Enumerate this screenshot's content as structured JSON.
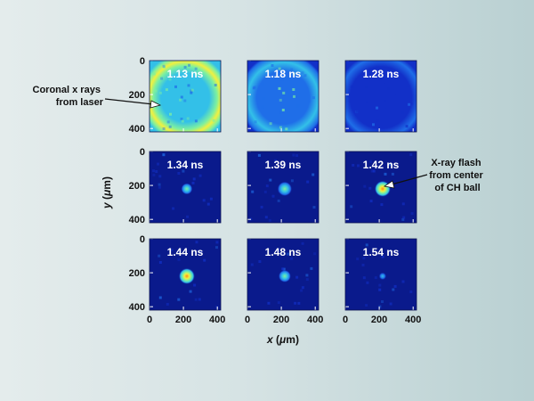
{
  "chart_data": {
    "type": "heatmap",
    "description_layout": "3x3 grid of x-ray framing-camera images",
    "xlabel": "x (μm)",
    "ylabel": "y (μm)",
    "xlabel_parts": [
      "x",
      " (",
      "μ",
      "m)"
    ],
    "ylabel_parts": [
      "y",
      " (",
      "μ",
      "m)"
    ],
    "xlim": [
      0,
      420
    ],
    "ylim": [
      0,
      420
    ],
    "x_ticks": [
      "0",
      "200",
      "400"
    ],
    "y_ticks": [
      "0",
      "200",
      "400"
    ],
    "colormap": [
      "#0a1a8c",
      "#1230c8",
      "#1f6ee8",
      "#33c0e8",
      "#7df0a0",
      "#f0f040",
      "#ff8c1a"
    ],
    "panels": [
      {
        "time_label": "1.13 ns",
        "ring": 1.0,
        "spot": 0.0,
        "noise": 0.35
      },
      {
        "time_label": "1.18 ns",
        "ring": 0.55,
        "spot": 0.0,
        "noise": 0.3
      },
      {
        "time_label": "1.28 ns",
        "ring": 0.12,
        "spot": 0.0,
        "noise": 0.25
      },
      {
        "time_label": "1.34 ns",
        "ring": 0.0,
        "spot": 0.55,
        "noise": 0.15
      },
      {
        "time_label": "1.39 ns",
        "ring": 0.0,
        "spot": 0.85,
        "noise": 0.15
      },
      {
        "time_label": "1.42 ns",
        "ring": 0.0,
        "spot": 1.0,
        "noise": 0.15
      },
      {
        "time_label": "1.44 ns",
        "ring": 0.0,
        "spot": 1.0,
        "noise": 0.15
      },
      {
        "time_label": "1.48 ns",
        "ring": 0.0,
        "spot": 0.65,
        "noise": 0.15
      },
      {
        "time_label": "1.54 ns",
        "ring": 0.0,
        "spot": 0.2,
        "noise": 0.15
      }
    ],
    "spot_center": [
      220,
      220
    ],
    "annotations": [
      {
        "lines": [
          "Coronal x rays",
          "from laser"
        ],
        "target_panel": 0
      },
      {
        "lines": [
          "X-ray flash",
          "from center",
          "of CH ball"
        ],
        "target_panel": 5
      }
    ]
  }
}
